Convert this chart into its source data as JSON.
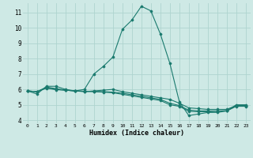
{
  "xlabel": "Humidex (Indice chaleur)",
  "xlim": [
    -0.5,
    23.5
  ],
  "ylim": [
    3.8,
    11.6
  ],
  "xtick_labels": [
    "0",
    "1",
    "2",
    "3",
    "4",
    "5",
    "6",
    "7",
    "8",
    "9",
    "10",
    "11",
    "12",
    "13",
    "14",
    "15",
    "16",
    "17",
    "18",
    "19",
    "20",
    "21",
    "22",
    "23"
  ],
  "ytick_values": [
    4,
    5,
    6,
    7,
    8,
    9,
    10,
    11
  ],
  "background_color": "#cee9e5",
  "grid_color": "#aed4cf",
  "line_color": "#1a7a6e",
  "curves": [
    [
      5.9,
      5.7,
      6.2,
      6.2,
      6.0,
      5.9,
      6.0,
      7.0,
      7.5,
      8.1,
      9.9,
      10.5,
      11.4,
      11.1,
      9.6,
      7.7,
      5.2,
      4.3,
      4.4,
      4.5,
      4.5,
      4.6,
      5.0,
      5.0
    ],
    [
      5.9,
      5.85,
      6.15,
      6.05,
      5.95,
      5.9,
      5.85,
      5.9,
      5.95,
      6.0,
      5.85,
      5.75,
      5.65,
      5.55,
      5.45,
      5.35,
      5.1,
      4.8,
      4.75,
      4.7,
      4.7,
      4.7,
      4.95,
      4.95
    ],
    [
      5.9,
      5.85,
      6.1,
      6.0,
      5.95,
      5.9,
      5.88,
      5.87,
      5.85,
      5.82,
      5.75,
      5.65,
      5.55,
      5.45,
      5.35,
      5.1,
      4.95,
      4.65,
      4.6,
      4.6,
      4.6,
      4.62,
      4.92,
      4.92
    ],
    [
      5.9,
      5.85,
      6.08,
      5.98,
      5.95,
      5.9,
      5.87,
      5.85,
      5.82,
      5.78,
      5.68,
      5.58,
      5.48,
      5.38,
      5.28,
      5.0,
      4.9,
      4.58,
      4.55,
      4.55,
      4.58,
      4.6,
      4.9,
      4.9
    ]
  ]
}
